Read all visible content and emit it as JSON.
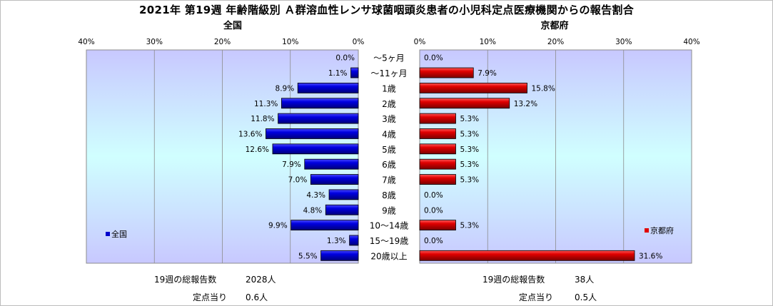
{
  "title": "2021年 第19週 年齢階級別 Ａ群溶血性レンサ球菌咽頭炎患者の小児科定点医療機関からの報告割合",
  "colors": {
    "national": "#0000cc",
    "kyoto": "#e00000"
  },
  "chart_data": [
    {
      "type": "bar",
      "orientation": "horizontal-reversed",
      "title": "全国",
      "legend": "全国",
      "legend_position": "bottom-left",
      "xlim": [
        0,
        40
      ],
      "ticks": [
        "40%",
        "30%",
        "20%",
        "10%",
        "0%"
      ],
      "tick_values": [
        40,
        30,
        20,
        10,
        0
      ],
      "categories": [
        "～5ヶ月",
        "～11ヶ月",
        "1歳",
        "2歳",
        "3歳",
        "4歳",
        "5歳",
        "6歳",
        "7歳",
        "8歳",
        "9歳",
        "10～14歳",
        "15～19歳",
        "20歳以上"
      ],
      "values": [
        0.0,
        1.1,
        8.9,
        11.3,
        11.8,
        13.6,
        12.6,
        7.9,
        7.0,
        4.3,
        4.8,
        9.9,
        1.3,
        5.5
      ],
      "labels": [
        "0.0%",
        "1.1%",
        "8.9%",
        "11.3%",
        "11.8%",
        "13.6%",
        "12.6%",
        "7.9%",
        "7.0%",
        "4.3%",
        "4.8%",
        "9.9%",
        "1.3%",
        "5.5%"
      ],
      "grid": true
    },
    {
      "type": "bar",
      "orientation": "horizontal",
      "title": "京都府",
      "legend": "京都府",
      "legend_position": "bottom-right",
      "xlim": [
        0,
        40
      ],
      "ticks": [
        "0%",
        "10%",
        "20%",
        "30%",
        "40%"
      ],
      "tick_values": [
        0,
        10,
        20,
        30,
        40
      ],
      "categories": [
        "～5ヶ月",
        "～11ヶ月",
        "1歳",
        "2歳",
        "3歳",
        "4歳",
        "5歳",
        "6歳",
        "7歳",
        "8歳",
        "9歳",
        "10～14歳",
        "15～19歳",
        "20歳以上"
      ],
      "values": [
        0.0,
        7.9,
        15.8,
        13.2,
        5.3,
        5.3,
        5.3,
        5.3,
        5.3,
        0.0,
        0.0,
        5.3,
        0.0,
        31.6
      ],
      "labels": [
        "0.0%",
        "7.9%",
        "15.8%",
        "13.2%",
        "5.3%",
        "5.3%",
        "5.3%",
        "5.3%",
        "5.3%",
        "0.0%",
        "0.0%",
        "5.3%",
        "0.0%",
        "31.6%"
      ],
      "grid": true
    }
  ],
  "footer": {
    "national": {
      "total_label": "19週の総報告数",
      "total_value": "2028人",
      "per_label": "定点当り",
      "per_value": "0.6人"
    },
    "kyoto": {
      "total_label": "19週の総報告数",
      "total_value": "38人",
      "per_label": "定点当り",
      "per_value": "0.5人"
    }
  }
}
